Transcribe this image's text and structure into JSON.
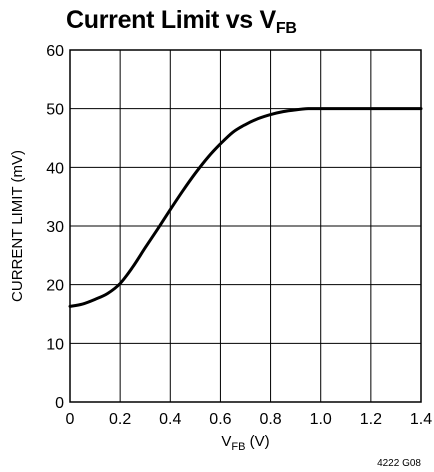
{
  "title": {
    "main": "Current Limit vs V",
    "sub": "FB"
  },
  "chart_data": {
    "type": "line",
    "title": "Current Limit vs VFB",
    "xlabel": "VFB (V)",
    "ylabel": "CURRENT LIMIT (mV)",
    "xlim": [
      0,
      1.4
    ],
    "ylim": [
      0,
      60
    ],
    "xticks": [
      "0",
      "0.2",
      "0.4",
      "0.6",
      "0.8",
      "1.0",
      "1.2",
      "1.4"
    ],
    "yticks": [
      "0",
      "10",
      "20",
      "30",
      "40",
      "50",
      "60"
    ],
    "grid": true,
    "series": [
      {
        "x": [
          0,
          0.05,
          0.1,
          0.15,
          0.2,
          0.25,
          0.3,
          0.35,
          0.4,
          0.45,
          0.5,
          0.55,
          0.6,
          0.65,
          0.7,
          0.75,
          0.8,
          0.85,
          0.9,
          0.95,
          1.0,
          1.1,
          1.2,
          1.3,
          1.4
        ],
        "y": [
          16.3,
          16.7,
          17.5,
          18.5,
          20.2,
          23,
          26.3,
          29.5,
          32.8,
          36,
          39,
          41.7,
          44,
          46,
          47.3,
          48.3,
          49,
          49.5,
          49.8,
          50,
          50,
          50,
          50,
          50,
          50
        ]
      }
    ]
  },
  "xlabel_parts": {
    "main": "V",
    "sub": "FB",
    "unit": " (V)"
  },
  "figure_note": "4222 G08",
  "colors": {
    "line": "#000000",
    "grid": "#000000",
    "background": "#ffffff"
  }
}
